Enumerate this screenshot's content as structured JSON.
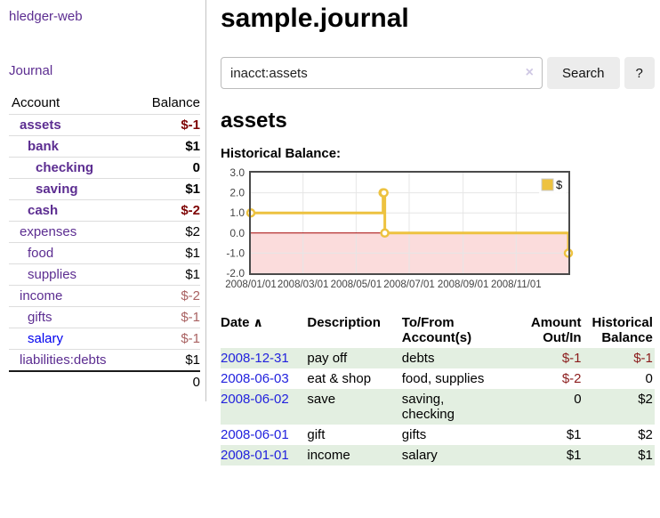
{
  "sidebar": {
    "app_title": "hledger-web",
    "journal_link": "Journal",
    "accounts_header": {
      "account": "Account",
      "balance": "Balance"
    },
    "accounts": [
      {
        "name": "assets",
        "depth": 1,
        "bold": true,
        "link_color": "purple",
        "balance": "$-1",
        "balance_class": "neg-strong"
      },
      {
        "name": "bank",
        "depth": 2,
        "bold": true,
        "link_color": "purple",
        "balance": "$1",
        "balance_class": ""
      },
      {
        "name": "checking",
        "depth": 3,
        "bold": true,
        "link_color": "purple",
        "balance": "0",
        "balance_class": ""
      },
      {
        "name": "saving",
        "depth": 3,
        "bold": true,
        "link_color": "purple",
        "balance": "$1",
        "balance_class": ""
      },
      {
        "name": "cash",
        "depth": 2,
        "bold": true,
        "link_color": "purple",
        "balance": "$-2",
        "balance_class": "neg-strong"
      },
      {
        "name": "expenses",
        "depth": 1,
        "bold": false,
        "link_color": "purple",
        "balance": "$2",
        "balance_class": ""
      },
      {
        "name": "food",
        "depth": 2,
        "bold": false,
        "link_color": "purple",
        "balance": "$1",
        "balance_class": ""
      },
      {
        "name": "supplies",
        "depth": 2,
        "bold": false,
        "link_color": "purple",
        "balance": "$1",
        "balance_class": ""
      },
      {
        "name": "income",
        "depth": 1,
        "bold": false,
        "link_color": "purple",
        "balance": "$-2",
        "balance_class": "neg-soft"
      },
      {
        "name": "gifts",
        "depth": 2,
        "bold": false,
        "link_color": "purple",
        "balance": "$-1",
        "balance_class": "neg-soft"
      },
      {
        "name": "salary",
        "depth": 2,
        "bold": false,
        "link_color": "blue",
        "balance": "$-1",
        "balance_class": "neg-soft"
      },
      {
        "name": "liabilities:debts",
        "depth": 1,
        "bold": false,
        "link_color": "purple",
        "balance": "$1",
        "balance_class": ""
      }
    ],
    "total": "0"
  },
  "header": {
    "title": "sample.journal"
  },
  "search": {
    "query": "inacct:assets",
    "clear_icon": "×",
    "button_label": "Search",
    "help_label": "?"
  },
  "main": {
    "account_heading": "assets"
  },
  "chart_data": {
    "type": "line",
    "title": "Historical Balance:",
    "legend": {
      "position": "top-right",
      "entries": [
        {
          "label": "$",
          "color": "#edc240"
        }
      ]
    },
    "series": [
      {
        "name": "$",
        "color": "#edc240",
        "step": true,
        "points": [
          [
            "2008-01-01",
            1
          ],
          [
            "2008-06-01",
            2
          ],
          [
            "2008-06-02",
            2
          ],
          [
            "2008-06-03",
            0
          ],
          [
            "2008-12-31",
            -1
          ]
        ]
      }
    ],
    "x_range": [
      "2008-01-01",
      "2008-12-31"
    ],
    "ylim": [
      -2,
      3
    ],
    "y_ticks": [
      {
        "value": 3,
        "label": "3.0"
      },
      {
        "value": 2,
        "label": "2.0"
      },
      {
        "value": 1,
        "label": "1.0"
      },
      {
        "value": 0,
        "label": "0.0"
      },
      {
        "value": -1,
        "label": "-1.0"
      },
      {
        "value": -2,
        "label": "-2.0"
      }
    ],
    "x_ticks": [
      {
        "date": "2008-01-01",
        "label": "2008/01/01"
      },
      {
        "date": "2008-03-01",
        "label": "2008/03/01"
      },
      {
        "date": "2008-05-01",
        "label": "2008/05/01"
      },
      {
        "date": "2008-07-01",
        "label": "2008/07/01"
      },
      {
        "date": "2008-09-01",
        "label": "2008/09/01"
      },
      {
        "date": "2008-11-01",
        "label": "2008/11/01"
      }
    ],
    "grid": true,
    "colors": {
      "border": "#4a4a4a",
      "gridline": "#e6e6e6",
      "zero_line": "#a40000",
      "negative_region": "#fbdcdc",
      "point_fill": "#ffffff"
    }
  },
  "transactions": {
    "sort_icon": "∧",
    "columns": [
      {
        "label": "Date",
        "align": "left",
        "sorted": true
      },
      {
        "label": "Description",
        "align": "left"
      },
      {
        "label": "To/From Account(s)",
        "align": "left"
      },
      {
        "label": "Amount Out/In",
        "align": "right"
      },
      {
        "label": "Historical Balance",
        "align": "right"
      }
    ],
    "rows": [
      {
        "date": "2008-12-31",
        "description": "pay off",
        "accounts": "debts",
        "amount": "$-1",
        "amount_negative": true,
        "balance": "$-1",
        "balance_negative": true
      },
      {
        "date": "2008-06-03",
        "description": "eat & shop",
        "accounts": "food, supplies",
        "amount": "$-2",
        "amount_negative": true,
        "balance": "0",
        "balance_negative": false
      },
      {
        "date": "2008-06-02",
        "description": "save",
        "accounts": "saving, checking",
        "amount": "0",
        "amount_negative": false,
        "balance": "$2",
        "balance_negative": false
      },
      {
        "date": "2008-06-01",
        "description": "gift",
        "accounts": "gifts",
        "amount": "$1",
        "amount_negative": false,
        "balance": "$2",
        "balance_negative": false
      },
      {
        "date": "2008-01-01",
        "description": "income",
        "accounts": "salary",
        "amount": "$1",
        "amount_negative": false,
        "balance": "$1",
        "balance_negative": false
      }
    ]
  },
  "colors": {
    "link_purple": "#5c2d91",
    "link_blue": "#0000ee",
    "date_link_blue": "#2222dd",
    "negative_strong": "#7e0505",
    "negative_soft": "#a96262",
    "table_negative": "#8b1c1c",
    "row_stripe_green": "#e3efe1",
    "chart_line": "#edc240"
  }
}
